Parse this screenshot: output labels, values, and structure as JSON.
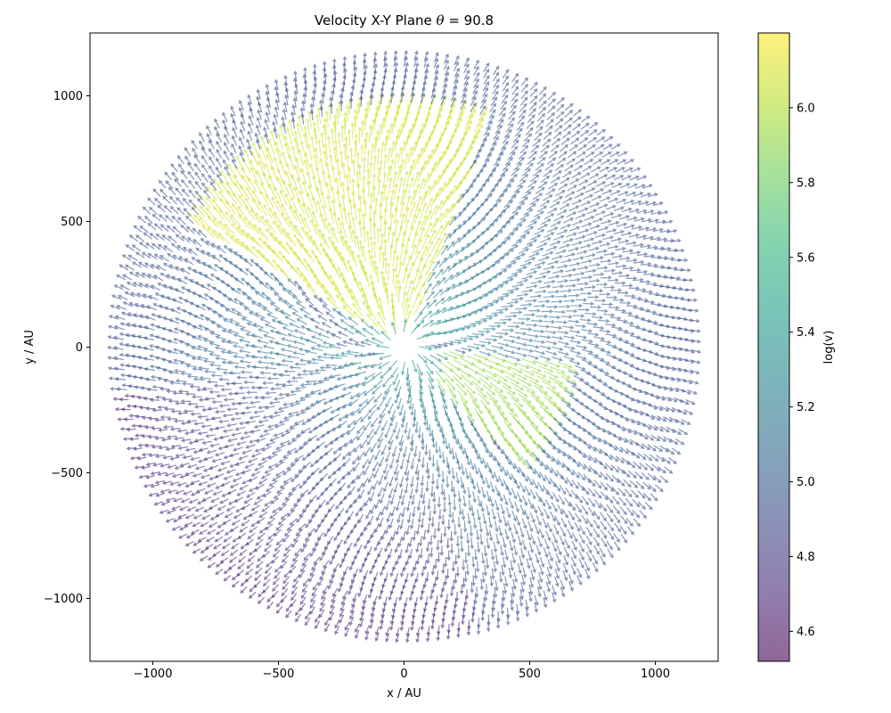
{
  "chart_data": {
    "type": "quiver",
    "title_prefix": "Velocity X-Y Plane ",
    "title_symbol": "θ",
    "title_suffix": " =  90.8",
    "xlabel": "x / AU",
    "ylabel": "y / AU",
    "xlim": [
      -1250,
      1250
    ],
    "ylim": [
      -1250,
      1250
    ],
    "xticks": [
      -1000,
      -500,
      0,
      500,
      1000
    ],
    "yticks": [
      -1000,
      -500,
      0,
      500,
      1000
    ],
    "xtick_labels": [
      "−1000",
      "−500",
      "0",
      "500",
      "1000"
    ],
    "ytick_labels": [
      "−1000",
      "−500",
      "0",
      "500",
      "1000"
    ],
    "grid": false,
    "domain_radius_au": 1150,
    "colorbar": {
      "label": "log(v)",
      "range": [
        4.52,
        6.2
      ],
      "ticks": [
        4.6,
        4.8,
        5.0,
        5.2,
        5.4,
        5.6,
        5.8,
        6.0
      ],
      "tick_labels": [
        "4.6",
        "4.8",
        "5.0",
        "5.2",
        "5.4",
        "5.6",
        "5.8",
        "6.0"
      ],
      "colormap": "viridis",
      "alpha": 0.6
    },
    "colormap_stops": [
      "#440154",
      "#482878",
      "#3e4989",
      "#31688e",
      "#26828e",
      "#1f9e89",
      "#35b779",
      "#6ece58",
      "#b5de2b",
      "#fde725"
    ],
    "features": {
      "high_velocity_lobes": [
        {
          "label": "upper-left lobe",
          "log_v": 6.1,
          "angle_range_deg": [
            70,
            150
          ],
          "radius_range_au": [
            80,
            960
          ]
        },
        {
          "label": "lower-right lobe",
          "log_v": 5.95,
          "angle_range_deg": [
            -45,
            -5
          ],
          "radius_range_au": [
            150,
            640
          ]
        }
      ],
      "core_log_v": 5.5,
      "outer_log_v_right": 4.9,
      "outer_log_v_lower_left": 4.65,
      "spiral_arm_log_v": 4.95
    }
  }
}
